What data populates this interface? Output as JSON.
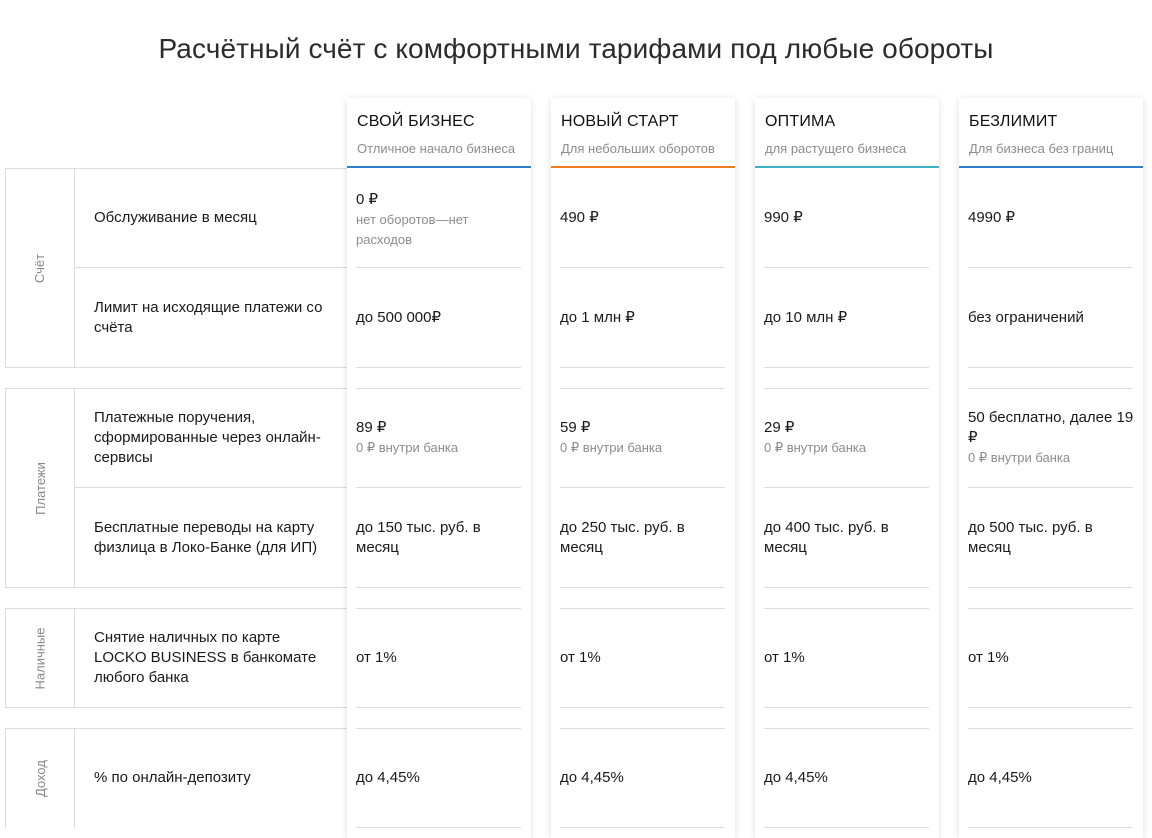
{
  "page": {
    "title": "Расчётный счёт с комфортными тарифами под любые обороты"
  },
  "colors": {
    "plan1": "#2f7fd1",
    "plan2": "#f07b1e",
    "plan3": "#3bb3c3",
    "plan4": "#2f7fd1"
  },
  "plans": [
    {
      "name": "СВОЙ БИЗНЕС",
      "subtitle": "Отличное начало бизнеса"
    },
    {
      "name": "НОВЫЙ СТАРТ",
      "subtitle": "Для небольших оборотов"
    },
    {
      "name": "ОПТИМА",
      "subtitle": "для растущего бизнеса"
    },
    {
      "name": "БЕЗЛИМИТ",
      "subtitle": "Для бизнеса без границ"
    }
  ],
  "categories": [
    "Счёт",
    "Платежи",
    "Наличные",
    "Доход"
  ],
  "rows": [
    {
      "label": "Обслуживание в месяц",
      "values": [
        {
          "main": "0 ₽",
          "note": "нет оборотов—нет расходов"
        },
        {
          "main": "490 ₽",
          "note": ""
        },
        {
          "main": "990 ₽",
          "note": ""
        },
        {
          "main": "4990 ₽",
          "note": ""
        }
      ]
    },
    {
      "label": "Лимит на исходящие платежи со счёта",
      "values": [
        {
          "main": "до  500 000₽",
          "note": ""
        },
        {
          "main": "до  1 млн ₽",
          "note": ""
        },
        {
          "main": "до  10 млн ₽",
          "note": ""
        },
        {
          "main": "без ограничений",
          "note": ""
        }
      ]
    },
    {
      "label": "Платежные поручения, сформированные через онлайн-сервисы",
      "values": [
        {
          "main": "89 ₽",
          "note": "0  ₽ внутри банка"
        },
        {
          "main": "59 ₽",
          "note": "0  ₽ внутри банка"
        },
        {
          "main": "29 ₽",
          "note": "0  ₽ внутри банка"
        },
        {
          "main": "50 бесплатно, далее 19 ₽",
          "note": "0  ₽ внутри банка"
        }
      ]
    },
    {
      "label": "Бесплатные переводы на карту физлица в Локо-Банке (для ИП)",
      "values": [
        {
          "main": "до 150 тыс. руб. в месяц",
          "note": ""
        },
        {
          "main": "до 250 тыс. руб. в месяц",
          "note": ""
        },
        {
          "main": "до 400 тыс. руб. в месяц",
          "note": ""
        },
        {
          "main": "до 500 тыс. руб. в месяц",
          "note": ""
        }
      ]
    },
    {
      "label": "Снятие наличных по карте LOCKO BUSINESS в банкомате любого банка",
      "values": [
        {
          "main": "от  1%",
          "note": ""
        },
        {
          "main": "от  1%",
          "note": ""
        },
        {
          "main": "от  1%",
          "note": ""
        },
        {
          "main": "от  1%",
          "note": ""
        }
      ]
    },
    {
      "label": "% по онлайн-депозиту",
      "values": [
        {
          "main": "до  4,45%",
          "note": ""
        },
        {
          "main": "до  4,45%",
          "note": ""
        },
        {
          "main": "до  4,45%",
          "note": ""
        },
        {
          "main": "до  4,45%",
          "note": ""
        }
      ]
    }
  ]
}
